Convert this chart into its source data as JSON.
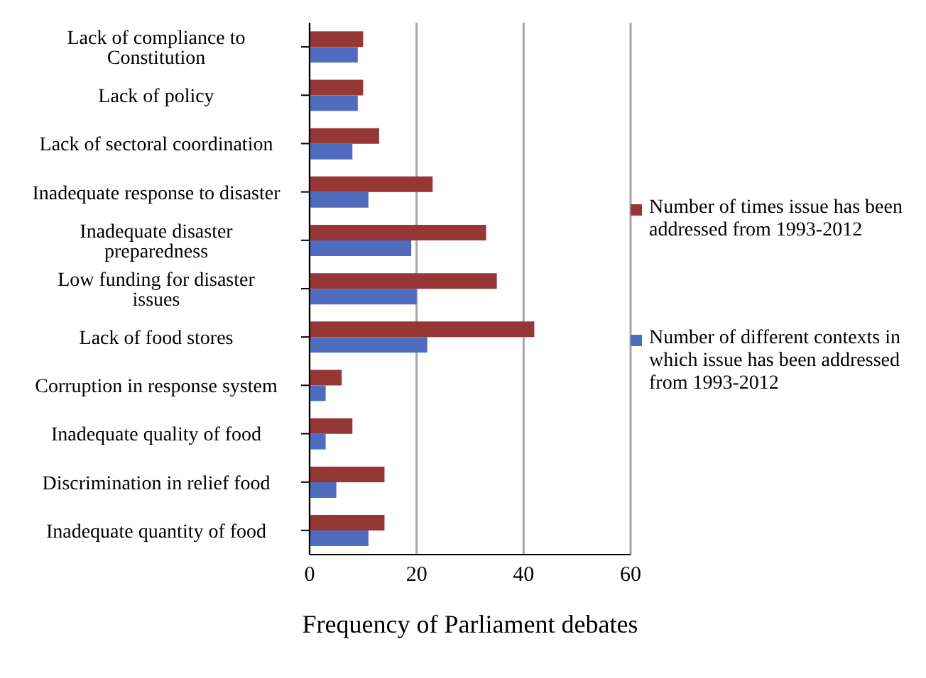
{
  "chart_data": {
    "type": "bar",
    "orientation": "horizontal",
    "xlabel": "Frequency of Parliament debates",
    "categories": [
      "Lack of compliance to Constitution",
      "Lack of policy",
      "Lack of sectoral coordination",
      "Inadequate response to disaster",
      "Inadequate disaster preparedness",
      "Low funding for disaster issues",
      "Lack of food stores",
      "Corruption in response system",
      "Inadequate quality of food",
      "Discrimination in relief food",
      "Inadequate quantity of food"
    ],
    "series": [
      {
        "name": "Number of times issue has been addressed from 1993-2012",
        "color": "#953735",
        "values": [
          10,
          10,
          13,
          23,
          33,
          35,
          42,
          6,
          8,
          14,
          14
        ]
      },
      {
        "name": "Number of different contexts in which issue has been addressed from 1993-2012",
        "color": "#4f6cbe",
        "values": [
          9,
          9,
          8,
          11,
          19,
          20,
          22,
          3,
          3,
          5,
          11
        ]
      }
    ],
    "xlim": [
      0,
      60
    ],
    "xticks": [
      0,
      20,
      40,
      60
    ],
    "grid": "x",
    "legend": "right"
  }
}
